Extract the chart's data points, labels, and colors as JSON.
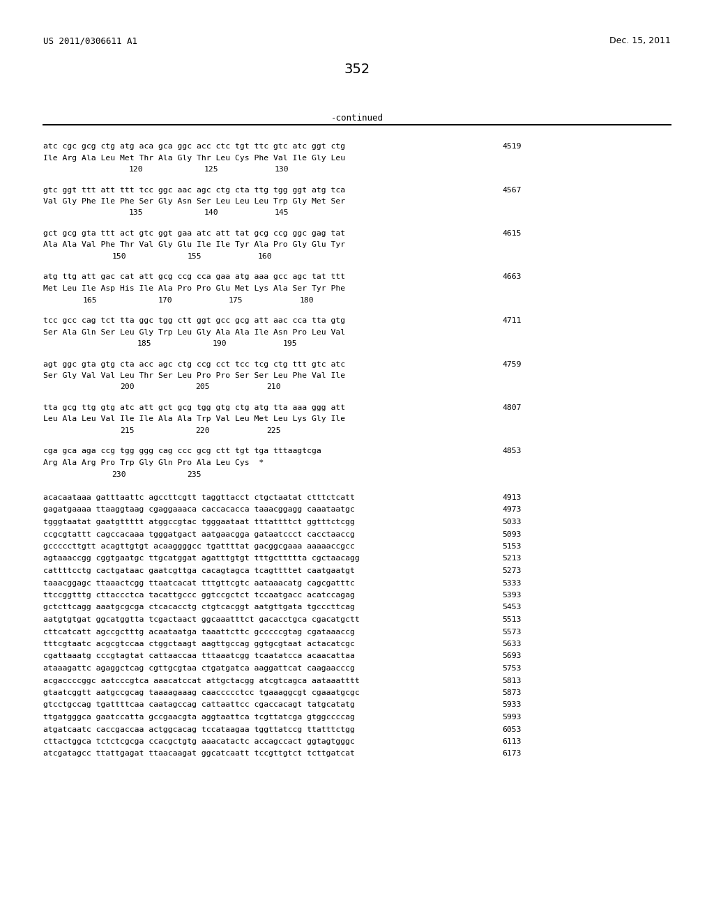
{
  "header_left": "US 2011/0306611 A1",
  "header_right": "Dec. 15, 2011",
  "page_number": "352",
  "continued_label": "-continued",
  "background_color": "#ffffff",
  "text_color": "#000000",
  "sequence_blocks": [
    {
      "dna": "atc cgc gcg ctg atg aca gca ggc acc ctc tgt ttc gtc atc ggt ctg",
      "protein": "Ile Arg Ala Leu Met Thr Ala Gly Thr Leu Cys Phe Val Ile Gly Leu",
      "numbers": [
        [
          "120",
          0.205
        ],
        [
          "125",
          0.385
        ],
        [
          "130",
          0.555
        ]
      ],
      "right_num": "4519"
    },
    {
      "dna": "gtc ggt ttt att ttt tcc ggc aac agc ctg cta ttg tgg ggt atg tca",
      "protein": "Val Gly Phe Ile Phe Ser Gly Asn Ser Leu Leu Leu Trp Gly Met Ser",
      "numbers": [
        [
          "135",
          0.205
        ],
        [
          "140",
          0.385
        ],
        [
          "145",
          0.555
        ]
      ],
      "right_num": "4567"
    },
    {
      "dna": "gct gcg gta ttt act gtc ggt gaa atc att tat gcg ccg ggc gag tat",
      "protein": "Ala Ala Val Phe Thr Val Gly Glu Ile Ile Tyr Ala Pro Gly Glu Tyr",
      "numbers": [
        [
          "150",
          0.165
        ],
        [
          "155",
          0.345
        ],
        [
          "160",
          0.515
        ]
      ],
      "right_num": "4615"
    },
    {
      "dna": "atg ttg att gac cat att gcg ccg cca gaa atg aaa gcc agc tat ttt",
      "protein": "Met Leu Ile Asp His Ile Ala Pro Pro Glu Met Lys Ala Ser Tyr Phe",
      "numbers": [
        [
          "165",
          0.095
        ],
        [
          "170",
          0.275
        ],
        [
          "175",
          0.445
        ],
        [
          "180",
          0.615
        ]
      ],
      "right_num": "4663"
    },
    {
      "dna": "tcc gcc cag tct tta ggc tgg ctt ggt gcc gcg att aac cca tta gtg",
      "protein": "Ser Ala Gln Ser Leu Gly Trp Leu Gly Ala Ala Ile Asn Pro Leu Val",
      "numbers": [
        [
          "185",
          0.225
        ],
        [
          "190",
          0.405
        ],
        [
          "195",
          0.575
        ]
      ],
      "right_num": "4711"
    },
    {
      "dna": "agt ggc gta gtg cta acc agc ctg ccg cct tcc tcg ctg ttt gtc atc",
      "protein": "Ser Gly Val Val Leu Thr Ser Leu Pro Pro Ser Ser Leu Phe Val Ile",
      "numbers": [
        [
          "200",
          0.185
        ],
        [
          "205",
          0.365
        ],
        [
          "210",
          0.535
        ]
      ],
      "right_num": "4759"
    },
    {
      "dna": "tta gcg ttg gtg atc att gct gcg tgg gtg ctg atg tta aaa ggg att",
      "protein": "Leu Ala Leu Val Ile Ile Ala Ala Trp Val Leu Met Leu Lys Gly Ile",
      "numbers": [
        [
          "215",
          0.185
        ],
        [
          "220",
          0.365
        ],
        [
          "225",
          0.535
        ]
      ],
      "right_num": "4807"
    },
    {
      "dna": "cga gca aga ccg tgg ggg cag ccc gcg ctt tgt tga tttaagtcga",
      "protein": "Arg Ala Arg Pro Trp Gly Gln Pro Ala Leu Cys  *",
      "numbers": [
        [
          "230",
          0.165
        ],
        [
          "235",
          0.345
        ]
      ],
      "right_num": "4853"
    }
  ],
  "plain_lines": [
    [
      "acacaataaa gatttaattc agccttcgtt taggttacct ctgctaatat ctttctcatt",
      "4913"
    ],
    [
      "gagatgaaaa ttaaggtaag cgaggaaaca caccacacca taaacggagg caaataatgc",
      "4973"
    ],
    [
      "tgggtaatat gaatgttttt atggccgtac tgggaataat tttattttct ggtttctcgg",
      "5033"
    ],
    [
      "ccgcgtattt cagccacaaa tgggatgact aatgaacgga gataatccct cacctaaccg",
      "5093"
    ],
    [
      "gcccccttgtt acagttgtgt acaaggggcc tgattttat gacggcgaaa aaaaaccgcc",
      "5153"
    ],
    [
      "agtaaaccgg cggtgaatgc ttgcatggat agatttgtgt tttgcttttta cgctaacagg",
      "5213"
    ],
    [
      "cattttcctg cactgataac gaatcgttga cacagtagca tcagttttet caatgaatgt",
      "5273"
    ],
    [
      "taaacggagc ttaaactcgg ttaatcacat tttgttcgtc aataaacatg cagcgatttc",
      "5333"
    ],
    [
      "ttccggtttg cttaccctca tacattgccc ggtccgctct tccaatgacc acatccagag",
      "5393"
    ],
    [
      "gctcttcagg aaatgcgcga ctcacacctg ctgtcacggt aatgttgata tgcccttcag",
      "5453"
    ],
    [
      "aatgtgtgat ggcatggtta tcgactaact ggcaaatttct gacacctgca cgacatgctt",
      "5513"
    ],
    [
      "cttcatcatt agccgctttg acaataatga taaattcttc gcccccgtag cgataaaccg",
      "5573"
    ],
    [
      "tttcgtaatc acgcgtccaa ctggctaagt aagttgccag ggtgcgtaat actacatcgc",
      "5633"
    ],
    [
      "cgattaaatg cccgtagtat cattaaccaa tttaaatcgg tcaatatcca acaacattaa",
      "5693"
    ],
    [
      "ataaagattc agaggctcag cgttgcgtaa ctgatgatca aaggattcat caagaacccg",
      "5753"
    ],
    [
      "acgaccccggc aatcccgtca aaacatccat attgctacgg atcgtcagca aataaatttt",
      "5813"
    ],
    [
      "gtaatcggtt aatgccgcag taaaagaaag caaccccctcc tgaaaggcgt cgaaatgcgc",
      "5873"
    ],
    [
      "gtcctgccag tgattttcaa caatagccag cattaattcc cgaccacagt tatgcatatg",
      "5933"
    ],
    [
      "ttgatgggca gaatccatta gccgaacgta aggtaattca tcgttatcga gtggccccag",
      "5993"
    ],
    [
      "atgatcaatc caccgaccaa actggcacag tccataagaa tggttatccg ttatttctgg",
      "6053"
    ],
    [
      "cttactggca tctctcgcga ccacgctgtg aaacatactc accagccact ggtagtgggc",
      "6113"
    ],
    [
      "atcgatagcc ttattgagat ttaacaagat ggcatcaatt tccgttgtct tcttgatcat",
      "6173"
    ]
  ]
}
